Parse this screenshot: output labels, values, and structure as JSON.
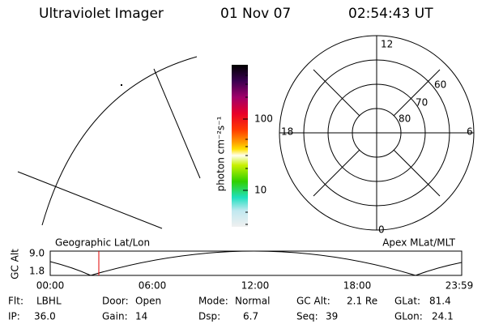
{
  "header": {
    "title": "Ultraviolet Imager",
    "date": "01 Nov 07",
    "time": "02:54:43 UT"
  },
  "colorbar": {
    "label": "photon cm⁻²s⁻¹",
    "tick_labels": [
      "100",
      "10"
    ]
  },
  "polar": {
    "mlt_labels": [
      "12",
      "6",
      "0",
      "18"
    ],
    "lat_labels": [
      "60",
      "70",
      "80"
    ]
  },
  "altitude_plot": {
    "left_title": "Geographic Lat/Lon",
    "right_title": "Apex MLat/MLT",
    "ylabel": "GC Alt",
    "yticks": [
      "9.0",
      "1.8"
    ],
    "xticks": [
      "00:00",
      "06:00",
      "12:00",
      "18:00",
      "23:59"
    ]
  },
  "status": {
    "rows": [
      [
        {
          "label": "Flt:",
          "value": "LBHL"
        },
        {
          "label": "Door:",
          "value": "Open"
        },
        {
          "label": "Mode:",
          "value": "Normal"
        },
        {
          "label": "GC Alt:",
          "value": "2.1 Re"
        },
        {
          "label": "GLat:",
          "value": "81.4"
        }
      ],
      [
        {
          "label": "IP:",
          "value": "36.0"
        },
        {
          "label": "Gain:",
          "value": "14"
        },
        {
          "label": "Dsp:",
          "value": "6.7"
        },
        {
          "label": "Seq:",
          "value": "39"
        },
        {
          "label": "GLon:",
          "value": "24.1"
        }
      ]
    ]
  }
}
